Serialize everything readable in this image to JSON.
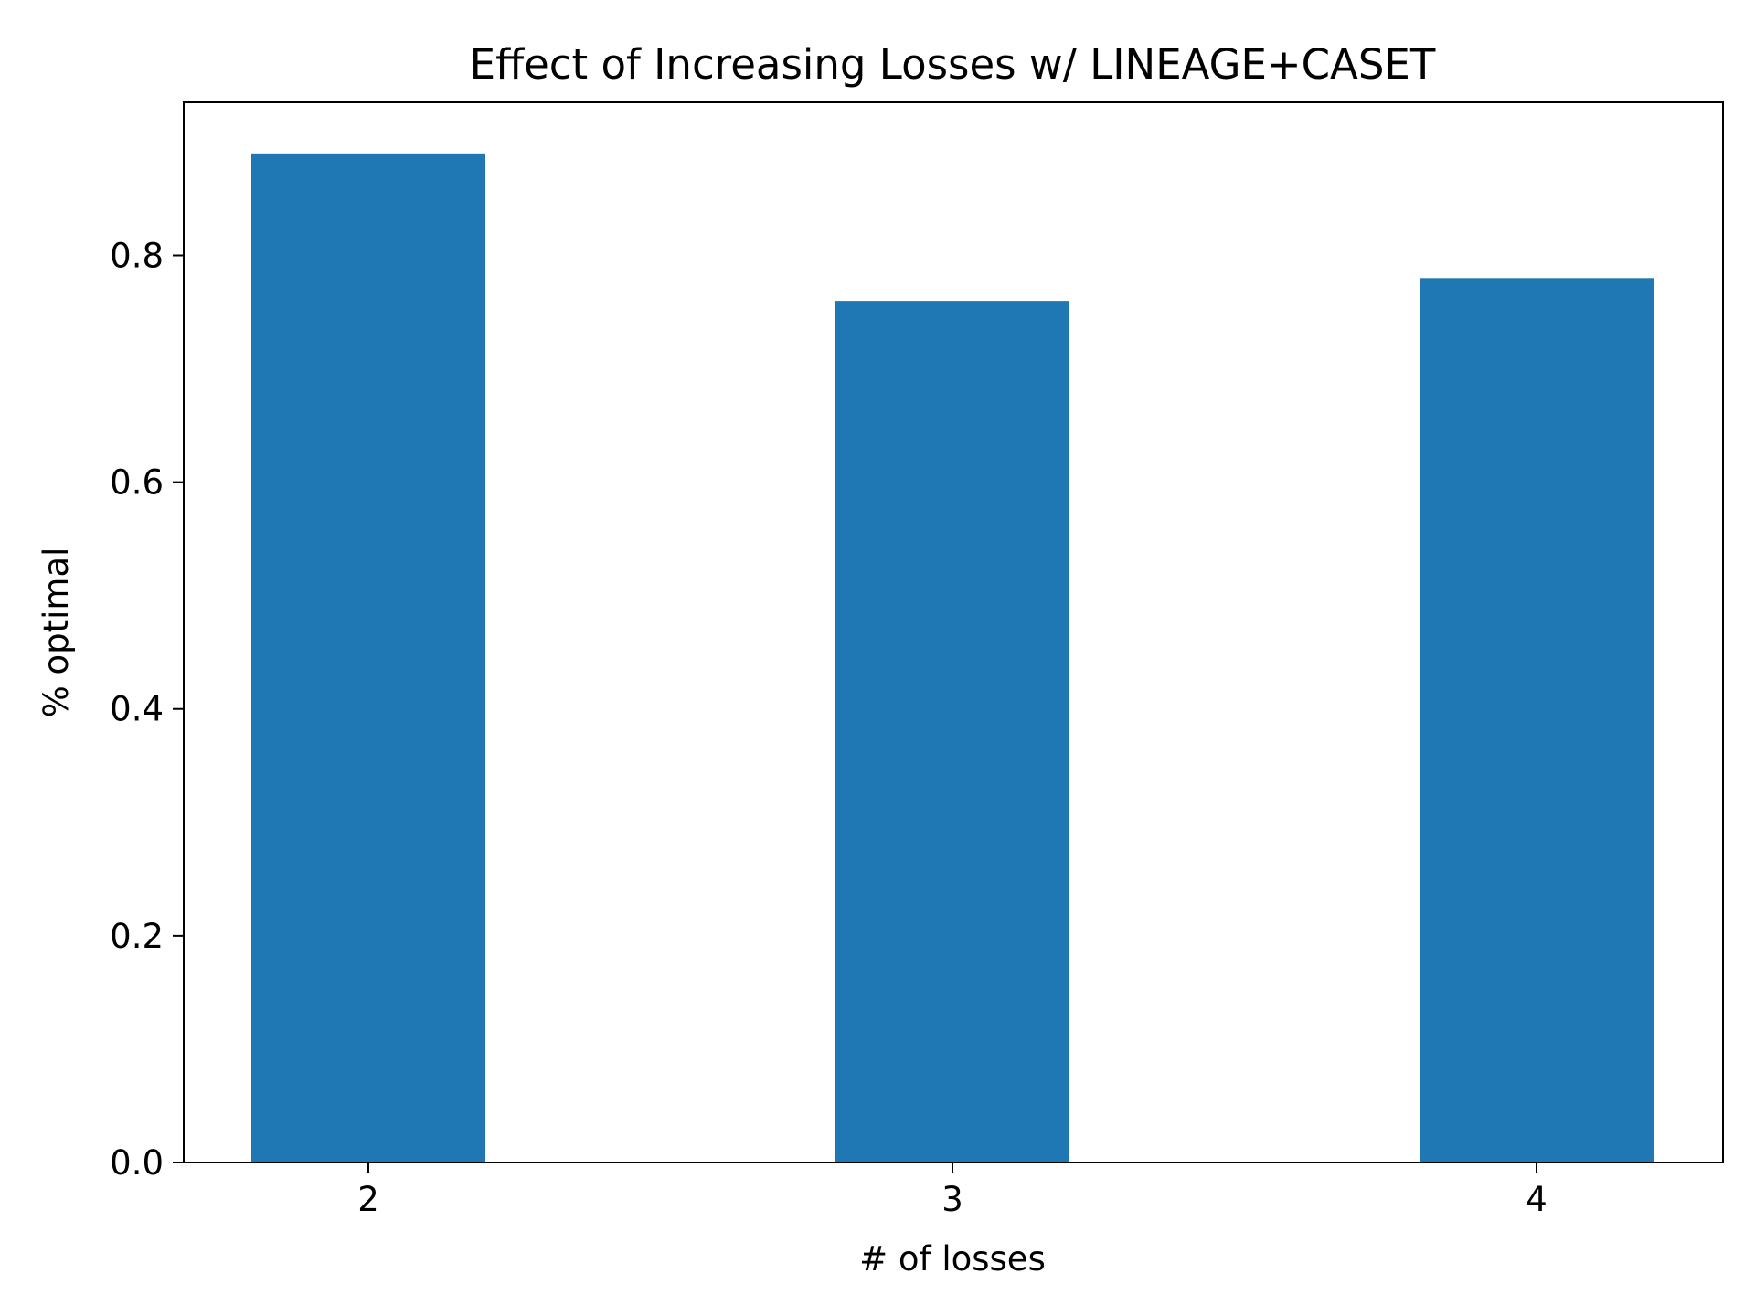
{
  "chart_data": {
    "type": "bar",
    "title": "Effect of Increasing Losses w/ LINEAGE+CASET",
    "xlabel": "# of losses",
    "ylabel": "% optimal",
    "categories": [
      "2",
      "3",
      "4"
    ],
    "values": [
      0.89,
      0.76,
      0.78
    ],
    "yticks": [
      "0.0",
      "0.2",
      "0.4",
      "0.6",
      "0.8"
    ],
    "ylim": [
      0,
      0.935
    ],
    "grid": false,
    "legend": "none",
    "bar_color": "#1f77b4"
  }
}
